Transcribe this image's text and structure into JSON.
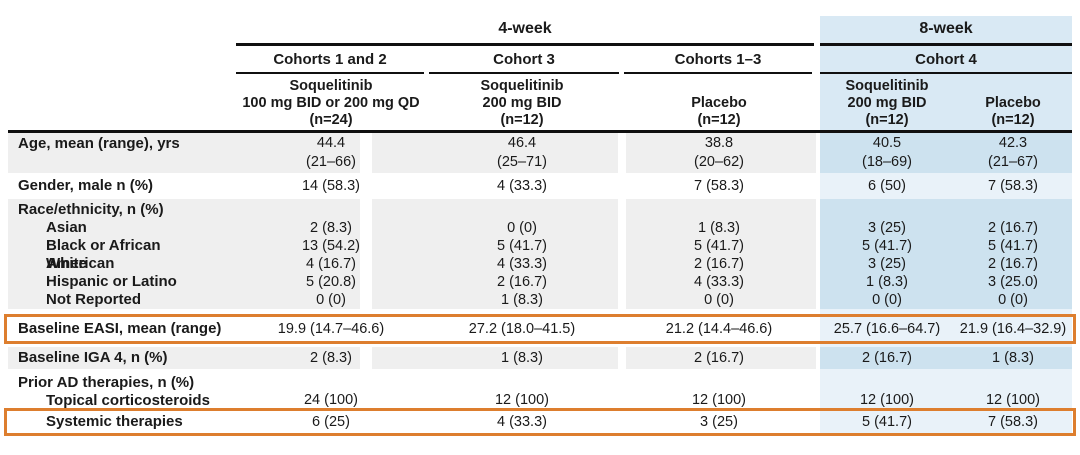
{
  "chart_data": {
    "type": "table",
    "periods": {
      "week4": "4-week",
      "week8": "8-week"
    },
    "cohorts": [
      "Cohorts 1 and 2",
      "Cohort 3",
      "Cohorts 1–3",
      "Cohort 4"
    ],
    "columns": [
      {
        "lines": [
          "Soquelitinib",
          "100 mg BID or 200 mg QD",
          "(n=24)"
        ]
      },
      {
        "lines": [
          "Soquelitinib",
          "200 mg BID",
          "(n=12)"
        ]
      },
      {
        "lines": [
          "Placebo",
          "(n=12)"
        ]
      },
      {
        "lines": [
          "Soquelitinib",
          "200 mg BID",
          "(n=12)"
        ]
      },
      {
        "lines": [
          "Placebo",
          "(n=12)"
        ]
      }
    ],
    "rows": {
      "age": {
        "label": "Age, mean (range), yrs",
        "values": [
          [
            "44.4",
            "(21–66)"
          ],
          [
            "46.4",
            "(25–71)"
          ],
          [
            "38.8",
            "(20–62)"
          ],
          [
            "40.5",
            "(18–69)"
          ],
          [
            "42.3",
            "(21–67)"
          ]
        ]
      },
      "gender": {
        "label": "Gender, male n (%)",
        "values": [
          "14 (58.3)",
          "4 (33.3)",
          "7 (58.3)",
          "6 (50)",
          "7 (58.3)"
        ]
      },
      "race": {
        "label": "Race/ethnicity, n (%)",
        "items": [
          {
            "label": "Asian",
            "values": [
              "2 (8.3)",
              "0 (0)",
              "1 (8.3)",
              "3 (25)",
              "2 (16.7)"
            ]
          },
          {
            "label": "Black or African American",
            "values": [
              "13 (54.2)",
              "5 (41.7)",
              "5 (41.7)",
              "5 (41.7)",
              "5 (41.7)"
            ]
          },
          {
            "label": "White",
            "values": [
              "4 (16.7)",
              "4 (33.3)",
              "2 (16.7)",
              "3 (25)",
              "2 (16.7)"
            ]
          },
          {
            "label": "Hispanic or Latino",
            "values": [
              "5 (20.8)",
              "2 (16.7)",
              "4 (33.3)",
              "1 (8.3)",
              "3 (25.0)"
            ]
          },
          {
            "label": "Not Reported",
            "values": [
              "0 (0)",
              "1 (8.3)",
              "0 (0)",
              "0 (0)",
              "0 (0)"
            ]
          }
        ]
      },
      "easi": {
        "label": "Baseline EASI, mean (range)",
        "highlighted": true,
        "values": [
          "19.9 (14.7–46.6)",
          "27.2 (18.0–41.5)",
          "21.2 (14.4–46.6)",
          "25.7 (16.6–64.7)",
          "21.9 (16.4–32.9)"
        ]
      },
      "iga": {
        "label": "Baseline IGA 4, n (%)",
        "values": [
          "2 (8.3)",
          "1 (8.3)",
          "2 (16.7)",
          "2 (16.7)",
          "1 (8.3)"
        ]
      },
      "prior": {
        "label": "Prior AD therapies, n (%)",
        "items": [
          {
            "label": "Topical corticosteroids",
            "values": [
              "24 (100)",
              "12 (100)",
              "12 (100)",
              "12 (100)",
              "12 (100)"
            ]
          },
          {
            "label": "Systemic therapies",
            "highlighted": true,
            "values": [
              "6 (25)",
              "4 (33.3)",
              "3 (25)",
              "5 (41.7)",
              "7 (58.3)"
            ]
          }
        ]
      }
    },
    "colors": {
      "highlight_border": "#DD7E2E",
      "week8_header_bg": "#D9E9F4",
      "week8_column_on_gray_rows": "#CDE2EF",
      "week8_column_on_white_rows": "#E9F2F9",
      "row_stripe_gray": "#EFEFEF"
    },
    "layout": {
      "grid": "off",
      "highlighted_rows": [
        "Baseline EASI, mean (range)",
        "Systemic therapies"
      ]
    }
  }
}
